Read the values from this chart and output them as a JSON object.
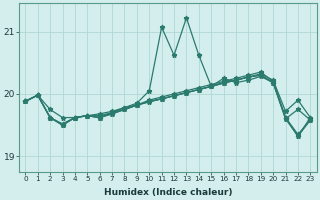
{
  "xlabel": "Humidex (Indice chaleur)",
  "bg_color": "#d4eeed",
  "line_color": "#2a7a6e",
  "grid_color": "#b0d8d4",
  "ylim": [
    18.75,
    21.45
  ],
  "xlim": [
    -0.5,
    23.5
  ],
  "yticks": [
    19,
    20,
    21
  ],
  "xticks": [
    0,
    1,
    2,
    3,
    4,
    5,
    6,
    7,
    8,
    9,
    10,
    11,
    12,
    13,
    14,
    15,
    16,
    17,
    18,
    19,
    20,
    21,
    22,
    23
  ],
  "series": [
    [
      19.88,
      19.98,
      19.75,
      19.62,
      19.62,
      19.65,
      19.68,
      19.72,
      19.78,
      19.82,
      19.87,
      19.92,
      19.97,
      20.02,
      20.07,
      20.12,
      20.17,
      20.22,
      20.27,
      20.32,
      20.22,
      19.72,
      19.9,
      19.62
    ],
    [
      19.88,
      19.98,
      19.62,
      19.5,
      19.62,
      19.65,
      19.62,
      19.7,
      19.78,
      19.85,
      20.05,
      21.07,
      20.62,
      21.22,
      20.62,
      20.12,
      20.25,
      20.18,
      20.22,
      20.28,
      20.18,
      19.62,
      19.32,
      19.62
    ],
    [
      19.88,
      19.98,
      19.62,
      19.52,
      19.62,
      19.65,
      19.65,
      19.7,
      19.75,
      19.82,
      19.9,
      19.95,
      20.0,
      20.05,
      20.1,
      20.15,
      20.2,
      20.25,
      20.3,
      20.35,
      20.2,
      19.62,
      19.35,
      19.58
    ],
    [
      19.88,
      19.98,
      19.62,
      19.5,
      19.62,
      19.65,
      19.62,
      19.68,
      19.75,
      19.82,
      19.88,
      19.92,
      19.97,
      20.02,
      20.07,
      20.12,
      20.18,
      20.22,
      20.27,
      20.3,
      20.18,
      19.6,
      19.32,
      19.58
    ],
    [
      19.88,
      19.98,
      19.62,
      19.5,
      19.62,
      19.65,
      19.62,
      19.68,
      19.75,
      19.82,
      19.88,
      19.92,
      19.97,
      20.02,
      20.07,
      20.12,
      20.18,
      20.22,
      20.27,
      20.3,
      20.18,
      19.6,
      19.75,
      19.58
    ]
  ]
}
